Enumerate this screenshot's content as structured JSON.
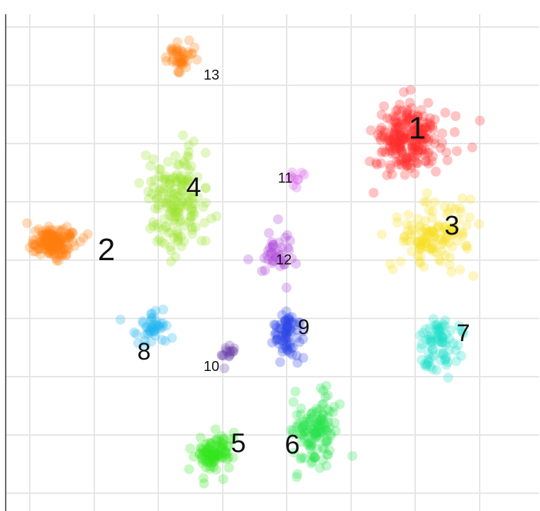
{
  "chart_data": {
    "type": "scatter",
    "title": "",
    "xlabel": "",
    "ylabel": "",
    "grid": true,
    "legend": "none",
    "x_tick_labels": [],
    "y_tick_labels": [],
    "clusters": [
      {
        "id": 1,
        "label": "1",
        "color": "#ff2a2a",
        "center": [
          575,
          195
        ],
        "spread": [
          45,
          45
        ],
        "count": 240
      },
      {
        "id": 2,
        "label": "2",
        "color": "#ff7f0e",
        "center": [
          75,
          340
        ],
        "spread": [
          28,
          20
        ],
        "count": 160
      },
      {
        "id": 3,
        "label": "3",
        "color": "#f7e020",
        "center": [
          610,
          330
        ],
        "spread": [
          45,
          40
        ],
        "count": 130
      },
      {
        "id": 4,
        "label": "4",
        "color": "#9be32a",
        "center": [
          250,
          280
        ],
        "spread": [
          40,
          65
        ],
        "count": 170
      },
      {
        "id": 5,
        "label": "5",
        "color": "#33e51c",
        "center": [
          300,
          640
        ],
        "spread": [
          25,
          25
        ],
        "count": 100
      },
      {
        "id": 6,
        "label": "6",
        "color": "#28e34a",
        "center": [
          445,
          605
        ],
        "spread": [
          30,
          45
        ],
        "count": 130
      },
      {
        "id": 7,
        "label": "7",
        "color": "#1ee0c8",
        "center": [
          620,
          480
        ],
        "spread": [
          25,
          35
        ],
        "count": 80
      },
      {
        "id": 8,
        "label": "8",
        "color": "#1fb4f0",
        "center": [
          215,
          465
        ],
        "spread": [
          25,
          25
        ],
        "count": 45
      },
      {
        "id": 9,
        "label": "9",
        "color": "#2a43e6",
        "center": [
          405,
          470
        ],
        "spread": [
          18,
          35
        ],
        "count": 75
      },
      {
        "id": 10,
        "label": "10",
        "color": "#6b3fa8",
        "center": [
          320,
          500
        ],
        "spread": [
          15,
          15
        ],
        "count": 16
      },
      {
        "id": 11,
        "label": "11",
        "color": "#d958e8",
        "center": [
          420,
          250
        ],
        "spread": [
          15,
          15
        ],
        "count": 10
      },
      {
        "id": 12,
        "label": "12",
        "color": "#a93cd6",
        "center": [
          390,
          355
        ],
        "spread": [
          30,
          30
        ],
        "count": 40
      },
      {
        "id": 13,
        "label": "13",
        "color": "#ff7f0e",
        "center": [
          255,
          80
        ],
        "spread": [
          15,
          20
        ],
        "count": 45
      }
    ]
  }
}
